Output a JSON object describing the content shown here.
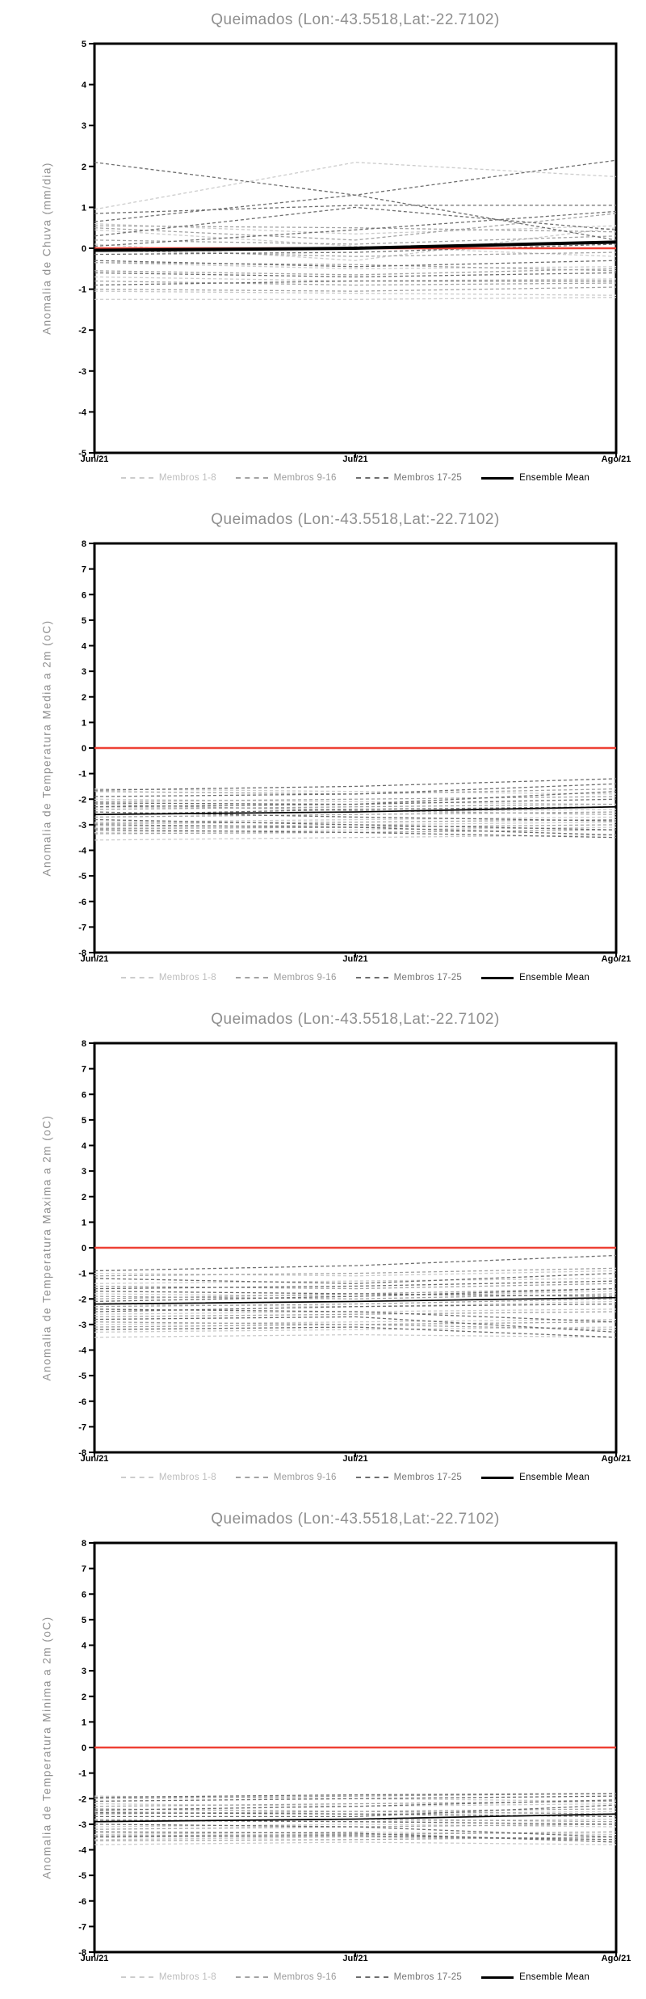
{
  "legend": {
    "items": [
      {
        "label": "Membros 1-8",
        "color": "#cccccc",
        "text_color": "#bdbdbd",
        "style": "dashed",
        "weight": 2
      },
      {
        "label": "Membros 9-16",
        "color": "#a3a3a3",
        "text_color": "#9a9a9a",
        "style": "dashed",
        "weight": 2
      },
      {
        "label": "Membros 17-25",
        "color": "#6e6e6e",
        "text_color": "#757575",
        "style": "dashed",
        "weight": 2
      },
      {
        "label": "Ensemble Mean",
        "color": "#000000",
        "text_color": "#000000",
        "style": "solid",
        "weight": 3
      }
    ]
  },
  "chart_data": [
    {
      "type": "line",
      "title": "Queimados (Lon:-43.5518,Lat:-22.7102)",
      "ylabel": "Anomalia de Chuva (mm/dia)",
      "xlabel": "",
      "x": [
        "Jun/21",
        "Jul/21",
        "Ago/21"
      ],
      "xticklabels": [
        "Jun/21",
        "Jul/21",
        "Ago/21"
      ],
      "ylim": [
        -5,
        5
      ],
      "yticks": [
        5,
        4,
        3,
        2,
        1,
        0,
        -1,
        -2,
        -3,
        -4,
        -5
      ],
      "grid": false,
      "legend_position": "bottom",
      "zero_line": {
        "y": 0,
        "color": "#ee4135"
      },
      "series": [
        {
          "name": "Membros 1-8",
          "color": "#cccccc",
          "style": "dashed",
          "members": [
            [
              0.95,
              2.1,
              1.75
            ],
            [
              0.6,
              0.35,
              0.55
            ],
            [
              0.45,
              0.05,
              -0.2
            ],
            [
              0.1,
              -0.3,
              0.5
            ],
            [
              -0.35,
              -0.5,
              -0.45
            ],
            [
              -0.7,
              -0.8,
              -0.75
            ],
            [
              -1.05,
              -1.1,
              -1.15
            ],
            [
              -1.25,
              -1.25,
              -1.2
            ]
          ]
        },
        {
          "name": "Membros 9-16",
          "color": "#a3a3a3",
          "style": "dashed",
          "members": [
            [
              0.55,
              0.5,
              0.4
            ],
            [
              0.5,
              0.2,
              0.85
            ],
            [
              0.2,
              0.1,
              0.3
            ],
            [
              -0.05,
              -0.2,
              -0.1
            ],
            [
              -0.35,
              -0.4,
              -0.55
            ],
            [
              -0.55,
              -0.65,
              -0.5
            ],
            [
              -0.8,
              -0.9,
              -0.85
            ],
            [
              -1.0,
              -1.05,
              -0.95
            ]
          ]
        },
        {
          "name": "Membros 17-25",
          "color": "#6e6e6e",
          "style": "dashed",
          "members": [
            [
              2.1,
              1.3,
              0.2
            ],
            [
              0.65,
              1.3,
              2.15
            ],
            [
              0.85,
              1.05,
              1.05
            ],
            [
              0.3,
              1.0,
              0.45
            ],
            [
              0.05,
              0.45,
              0.9
            ],
            [
              -0.15,
              -0.1,
              0.1
            ],
            [
              -0.3,
              -0.45,
              -0.3
            ],
            [
              -0.6,
              -0.7,
              -0.6
            ],
            [
              -0.9,
              -0.8,
              -0.8
            ]
          ]
        },
        {
          "name": "Ensemble Mean",
          "color": "#000000",
          "style": "solid",
          "width": 4,
          "members": [
            [
              -0.05,
              0.0,
              0.15
            ]
          ]
        }
      ]
    },
    {
      "type": "line",
      "title": "Queimados (Lon:-43.5518,Lat:-22.7102)",
      "ylabel": "Anomalia de Temperatura Media a 2m (oC)",
      "xlabel": "",
      "x": [
        "Jun/21",
        "Jul/21",
        "Ago/21"
      ],
      "xticklabels": [
        "Jun/21",
        "Jul/21",
        "Ago/21"
      ],
      "ylim": [
        -8,
        8
      ],
      "yticks": [
        8,
        7,
        6,
        5,
        4,
        3,
        2,
        1,
        0,
        -1,
        -2,
        -3,
        -4,
        -5,
        -6,
        -7,
        -8
      ],
      "grid": false,
      "legend_position": "bottom",
      "zero_line": {
        "y": 0,
        "color": "#ee4135"
      },
      "series": [
        {
          "name": "Membros 1-8",
          "color": "#cccccc",
          "style": "dashed",
          "members": [
            [
              -1.6,
              -1.7,
              -1.8
            ],
            [
              -2.0,
              -2.1,
              -2.2
            ],
            [
              -2.3,
              -2.4,
              -2.3
            ],
            [
              -2.6,
              -2.5,
              -2.4
            ],
            [
              -2.9,
              -2.8,
              -2.7
            ],
            [
              -3.1,
              -3.0,
              -2.9
            ],
            [
              -3.3,
              -3.2,
              -3.1
            ],
            [
              -3.6,
              -3.5,
              -3.4
            ]
          ]
        },
        {
          "name": "Membros 9-16",
          "color": "#a3a3a3",
          "style": "dashed",
          "members": [
            [
              -1.7,
              -1.8,
              -1.6
            ],
            [
              -2.1,
              -2.0,
              -1.9
            ],
            [
              -2.4,
              -2.3,
              -2.2
            ],
            [
              -2.7,
              -2.6,
              -2.5
            ],
            [
              -2.95,
              -2.9,
              -2.8
            ],
            [
              -3.15,
              -3.1,
              -3.0
            ],
            [
              -3.35,
              -3.3,
              -3.2
            ],
            [
              -2.2,
              -2.45,
              -2.6
            ]
          ]
        },
        {
          "name": "Membros 17-25",
          "color": "#6e6e6e",
          "style": "dashed",
          "members": [
            [
              -1.65,
              -1.5,
              -1.2
            ],
            [
              -1.9,
              -1.8,
              -1.4
            ],
            [
              -2.15,
              -2.2,
              -1.7
            ],
            [
              -2.5,
              -2.7,
              -2.85
            ],
            [
              -2.8,
              -3.0,
              -3.2
            ],
            [
              -3.0,
              -3.1,
              -3.4
            ],
            [
              -3.2,
              -3.3,
              -3.5
            ],
            [
              -2.3,
              -2.2,
              -2.0
            ],
            [
              -2.6,
              -2.4,
              -2.3
            ]
          ]
        },
        {
          "name": "Ensemble Mean",
          "color": "#000000",
          "style": "solid",
          "width": 1.7,
          "members": [
            [
              -2.6,
              -2.5,
              -2.3
            ]
          ]
        }
      ]
    },
    {
      "type": "line",
      "title": "Queimados (Lon:-43.5518,Lat:-22.7102)",
      "ylabel": "Anomalia de Temperatura Maxima a 2m (oC)",
      "xlabel": "",
      "x": [
        "Jun/21",
        "Jul/21",
        "Ago/21"
      ],
      "xticklabels": [
        "Jun/21",
        "Jul/21",
        "Ago/21"
      ],
      "ylim": [
        -8,
        8
      ],
      "yticks": [
        8,
        7,
        6,
        5,
        4,
        3,
        2,
        1,
        0,
        -1,
        -2,
        -3,
        -4,
        -5,
        -6,
        -7,
        -8
      ],
      "grid": false,
      "legend_position": "bottom",
      "zero_line": {
        "y": 0,
        "color": "#ee4135"
      },
      "series": [
        {
          "name": "Membros 1-8",
          "color": "#cccccc",
          "style": "dashed",
          "members": [
            [
              -1.0,
              -1.1,
              -0.9
            ],
            [
              -1.4,
              -1.3,
              -1.2
            ],
            [
              -1.8,
              -1.9,
              -1.7
            ],
            [
              -2.2,
              -2.3,
              -2.1
            ],
            [
              -2.6,
              -2.5,
              -2.4
            ],
            [
              -3.0,
              -2.9,
              -2.8
            ],
            [
              -3.3,
              -3.2,
              -3.1
            ],
            [
              -3.5,
              -3.4,
              -3.5
            ]
          ]
        },
        {
          "name": "Membros 9-16",
          "color": "#a3a3a3",
          "style": "dashed",
          "members": [
            [
              -1.1,
              -1.0,
              -0.8
            ],
            [
              -1.5,
              -1.6,
              -1.4
            ],
            [
              -1.9,
              -2.0,
              -1.8
            ],
            [
              -2.3,
              -2.2,
              -2.0
            ],
            [
              -2.7,
              -2.6,
              -2.5
            ],
            [
              -2.9,
              -3.0,
              -2.9
            ],
            [
              -3.1,
              -3.0,
              -3.2
            ],
            [
              -2.0,
              -1.8,
              -1.6
            ]
          ]
        },
        {
          "name": "Membros 17-25",
          "color": "#6e6e6e",
          "style": "dashed",
          "members": [
            [
              -0.9,
              -0.7,
              -0.3
            ],
            [
              -1.2,
              -1.4,
              -1.0
            ],
            [
              -1.6,
              -1.5,
              -1.3
            ],
            [
              -2.1,
              -1.9,
              -1.6
            ],
            [
              -2.4,
              -2.5,
              -2.9
            ],
            [
              -2.8,
              -2.7,
              -3.3
            ],
            [
              -3.2,
              -3.1,
              -3.5
            ],
            [
              -1.7,
              -1.8,
              -1.9
            ],
            [
              -2.5,
              -2.3,
              -2.2
            ]
          ]
        },
        {
          "name": "Ensemble Mean",
          "color": "#000000",
          "style": "solid",
          "width": 1.7,
          "members": [
            [
              -2.2,
              -2.1,
              -1.95
            ]
          ]
        }
      ]
    },
    {
      "type": "line",
      "title": "Queimados (Lon:-43.5518,Lat:-22.7102)",
      "ylabel": "Anomalia de Temperatura Minima a 2m (oC)",
      "xlabel": "",
      "x": [
        "Jun/21",
        "Jul/21",
        "Ago/21"
      ],
      "xticklabels": [
        "Jun/21",
        "Jul/21",
        "Ago/21"
      ],
      "ylim": [
        -8,
        8
      ],
      "yticks": [
        8,
        7,
        6,
        5,
        4,
        3,
        2,
        1,
        0,
        -1,
        -2,
        -3,
        -4,
        -5,
        -6,
        -7,
        -8
      ],
      "grid": false,
      "legend_position": "bottom",
      "zero_line": {
        "y": 0,
        "color": "#ee4135"
      },
      "series": [
        {
          "name": "Membros 1-8",
          "color": "#cccccc",
          "style": "dashed",
          "members": [
            [
              -1.9,
              -2.0,
              -2.1
            ],
            [
              -2.2,
              -2.3,
              -2.2
            ],
            [
              -2.5,
              -2.6,
              -2.5
            ],
            [
              -2.8,
              -2.9,
              -2.8
            ],
            [
              -3.1,
              -3.0,
              -3.1
            ],
            [
              -3.4,
              -3.3,
              -3.4
            ],
            [
              -3.6,
              -3.5,
              -3.6
            ],
            [
              -3.8,
              -3.7,
              -3.8
            ]
          ]
        },
        {
          "name": "Membros 9-16",
          "color": "#a3a3a3",
          "style": "dashed",
          "members": [
            [
              -2.0,
              -1.9,
              -1.8
            ],
            [
              -2.3,
              -2.2,
              -2.1
            ],
            [
              -2.6,
              -2.5,
              -2.4
            ],
            [
              -2.9,
              -2.8,
              -2.9
            ],
            [
              -3.2,
              -3.1,
              -3.0
            ],
            [
              -3.45,
              -3.4,
              -3.3
            ],
            [
              -3.65,
              -3.6,
              -3.5
            ],
            [
              -2.4,
              -2.5,
              -2.6
            ]
          ]
        },
        {
          "name": "Membros 17-25",
          "color": "#6e6e6e",
          "style": "dashed",
          "members": [
            [
              -1.95,
              -1.85,
              -1.8
            ],
            [
              -2.1,
              -2.0,
              -1.9
            ],
            [
              -2.45,
              -2.3,
              -2.05
            ],
            [
              -2.7,
              -2.7,
              -2.25
            ],
            [
              -3.0,
              -3.1,
              -3.5
            ],
            [
              -3.3,
              -3.35,
              -3.7
            ],
            [
              -3.5,
              -3.45,
              -3.6
            ],
            [
              -2.55,
              -2.6,
              -2.7
            ],
            [
              -2.85,
              -2.9,
              -3.0
            ]
          ]
        },
        {
          "name": "Ensemble Mean",
          "color": "#000000",
          "style": "solid",
          "width": 1.7,
          "members": [
            [
              -2.9,
              -2.8,
              -2.6
            ]
          ]
        }
      ]
    }
  ]
}
